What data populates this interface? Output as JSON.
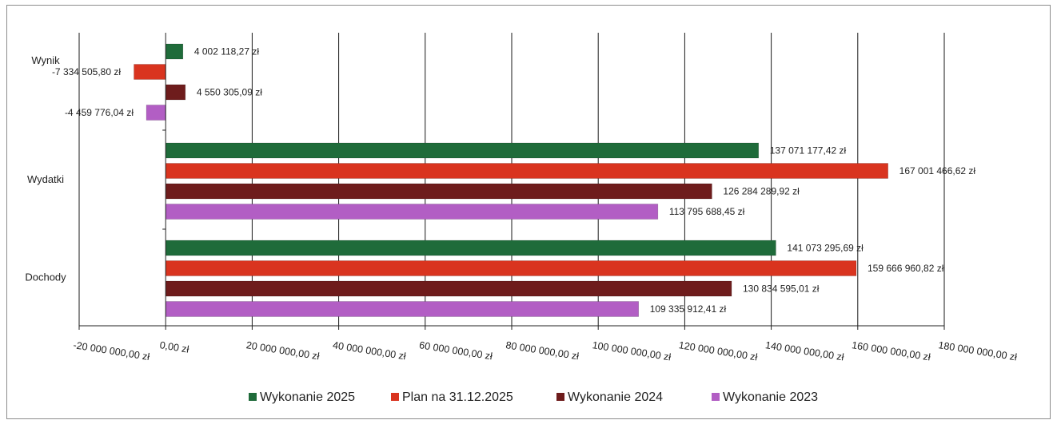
{
  "chart_data": {
    "type": "bar",
    "orientation": "horizontal",
    "categories": [
      "Wynik",
      "Wydatki",
      "Dochody"
    ],
    "series": [
      {
        "name": "Wykonanie 2025",
        "color": "#1f6b3a",
        "values": [
          4002118.27,
          137071177.42,
          141073295.69
        ],
        "labels": [
          "4 002 118,27 zł",
          "137 071 177,42 zł",
          "141 073 295,69 zł"
        ]
      },
      {
        "name": "Plan na 31.12.2025",
        "color": "#d9341f",
        "values": [
          -7334505.8,
          167001466.62,
          159666960.82
        ],
        "labels": [
          "-7 334 505,80 zł",
          "167 001 466,62 zł",
          "159 666 960,82 zł"
        ]
      },
      {
        "name": "Wykonanie 2024",
        "color": "#6e1c1c",
        "values": [
          4550305.09,
          126284289.92,
          130834595.01
        ],
        "labels": [
          "4 550 305,09 zł",
          "126 284 289,92 zł",
          "130 834 595,01 zł"
        ]
      },
      {
        "name": "Wykonanie 2023",
        "color": "#b25ec4",
        "values": [
          -4459776.04,
          113795688.45,
          109335912.41
        ],
        "labels": [
          "-4 459 776,04 zł",
          "113 795 688,45 zł",
          "109 335 912,41 zł"
        ]
      }
    ],
    "xlim": [
      -20000000,
      180000000
    ],
    "xticks": [
      -20000000,
      0,
      20000000,
      40000000,
      60000000,
      80000000,
      100000000,
      120000000,
      140000000,
      160000000,
      180000000
    ],
    "xtick_labels": [
      "-20 000 000,00 zł",
      "0,00 zł",
      "20 000 000,00 zł",
      "40 000 000,00 zł",
      "60 000 000,00 zł",
      "80 000 000,00 zł",
      "100 000 000,00 zł",
      "120 000 000,00 zł",
      "140 000 000,00 zł",
      "160 000 000,00 zł",
      "180 000 000,00 zł"
    ],
    "grid": true,
    "legend_position": "bottom"
  }
}
